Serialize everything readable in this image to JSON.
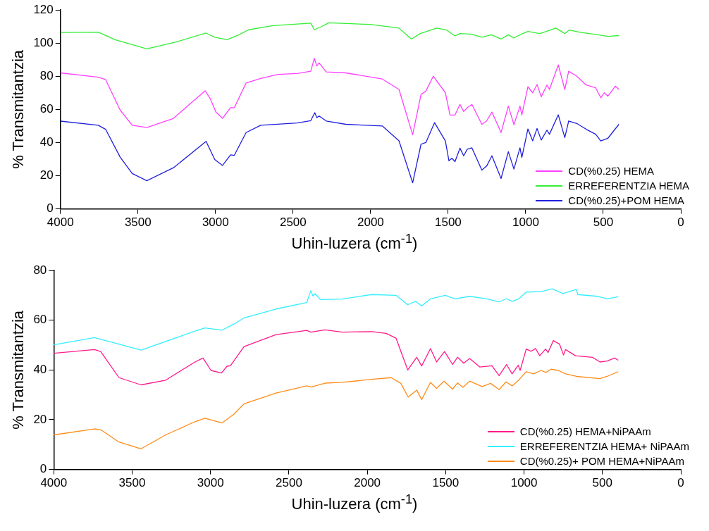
{
  "chart_data": [
    {
      "type": "line",
      "xlabel": "Uhin-luzera (cm$^{-1}$)",
      "ylabel": "% Transmitantzia",
      "xlim": [
        4000,
        0
      ],
      "xticks": [
        4000,
        3500,
        3000,
        2500,
        2000,
        1500,
        1000,
        500,
        0
      ],
      "ylim": [
        0,
        120
      ],
      "yticks": [
        0,
        20,
        40,
        60,
        80,
        100,
        120
      ],
      "grid": false,
      "legend": "bottom right",
      "marker": "none",
      "line_style": "solid",
      "series": [
        {
          "name": "CD(%0.25) HEMA",
          "color": "#ff40ff",
          "x": [
            4000,
            3756,
            3709,
            3615,
            3537,
            3443,
            3271,
            3067,
            3036,
            2997,
            2955,
            2903,
            2879,
            2803,
            2709,
            2598,
            2474,
            2386,
            2363,
            2347,
            2332,
            2286,
            2160,
            1925,
            1817,
            1729,
            1675,
            1644,
            1596,
            1518,
            1488,
            1456,
            1424,
            1400,
            1377,
            1347,
            1283,
            1252,
            1218,
            1159,
            1112,
            1076,
            1037,
            1025,
            986,
            955,
            927,
            900,
            863,
            847,
            790,
            748,
            723,
            671,
            610,
            549,
            516,
            494,
            470,
            422,
            399
          ],
          "values": [
            82,
            79.4,
            78,
            59.6,
            50.4,
            49,
            54.6,
            71.2,
            66.8,
            58.3,
            54.6,
            61,
            61,
            75.9,
            78.7,
            81.1,
            81.6,
            83,
            90.8,
            86.2,
            88,
            82.6,
            82,
            78.3,
            72,
            44.7,
            69,
            71,
            80,
            70,
            56.6,
            56.6,
            63,
            58.7,
            61,
            63,
            51,
            53,
            58.4,
            46,
            62,
            50.8,
            62,
            56.6,
            73.6,
            70,
            75,
            67.6,
            74.7,
            72,
            86.8,
            72,
            83,
            80,
            74.7,
            73,
            67,
            70,
            68,
            74,
            72
          ]
        },
        {
          "name": "ERREFERENTZIA HEMA",
          "color": "#33ee33",
          "x": [
            4000,
            3756,
            3648,
            3443,
            3255,
            3061,
            3005,
            2926,
            2849,
            2786,
            2629,
            2386,
            2363,
            2320,
            2269,
            2004,
            1817,
            1737,
            1680,
            1573,
            1510,
            1456,
            1424,
            1347,
            1283,
            1221,
            1159,
            1112,
            1076,
            1037,
            986,
            908,
            877,
            806,
            748,
            720,
            643,
            533,
            470,
            399
          ],
          "values": [
            106.4,
            106.6,
            102,
            96.5,
            100.6,
            106,
            103.5,
            102,
            105,
            108,
            110.5,
            112,
            108,
            109.8,
            112.2,
            111.2,
            109,
            102.4,
            105.7,
            109,
            107.8,
            104.3,
            105.7,
            105.3,
            103.5,
            105,
            102.4,
            105,
            103,
            105,
            107,
            105.7,
            106.7,
            109,
            105.7,
            107.8,
            106.4,
            105,
            104,
            104.5
          ]
        },
        {
          "name": "CD(%0.25)+POM HEMA",
          "color": "#1f1fdf",
          "x": [
            4000,
            3756,
            3709,
            3615,
            3537,
            3443,
            3271,
            3061,
            3005,
            2955,
            2903,
            2879,
            2803,
            2709,
            2474,
            2386,
            2360,
            2347,
            2332,
            2286,
            2160,
            1925,
            1817,
            1729,
            1675,
            1644,
            1588,
            1518,
            1495,
            1476,
            1456,
            1424,
            1400,
            1377,
            1347,
            1283,
            1252,
            1218,
            1159,
            1112,
            1076,
            1037,
            1025,
            986,
            955,
            927,
            900,
            863,
            847,
            790,
            748,
            723,
            671,
            610,
            549,
            516,
            470,
            399
          ],
          "values": [
            52.9,
            50.4,
            48,
            31.2,
            21.3,
            17,
            24.8,
            40.7,
            29.8,
            26.2,
            32.6,
            32.3,
            46,
            50.4,
            51.8,
            53.2,
            58,
            55,
            56,
            53,
            51,
            50,
            41,
            15.7,
            39,
            40,
            52,
            41,
            29,
            30.5,
            28.5,
            36.6,
            32,
            36,
            36.8,
            23.4,
            25.8,
            32,
            18.3,
            34.5,
            24,
            36.8,
            31,
            48.2,
            41,
            48.5,
            41.5,
            47.5,
            45,
            56.7,
            43,
            53,
            51.5,
            48,
            45,
            41,
            42.6,
            51
          ]
        }
      ]
    },
    {
      "type": "line",
      "xlabel": "Uhin-luzera (cm$^{-1}$)",
      "ylabel": "% Transmitantzia",
      "xlim": [
        4000,
        0
      ],
      "xticks": [
        4000,
        3500,
        3000,
        2500,
        2000,
        1500,
        1000,
        500,
        0
      ],
      "ylim": [
        0,
        80
      ],
      "yticks": [
        0,
        20,
        40,
        60,
        80
      ],
      "grid": false,
      "legend": "bottom right",
      "marker": "none",
      "line_style": "solid",
      "series": [
        {
          "name": "CD(%0.25) HEMA+NiPAAm",
          "color": "#ff1a8c",
          "x": [
            4000,
            3741,
            3701,
            3584,
            3443,
            3286,
            3099,
            3048,
            2997,
            2930,
            2895,
            2873,
            2786,
            2582,
            2386,
            2360,
            2269,
            2160,
            1972,
            1880,
            1817,
            1742,
            1685,
            1653,
            1597,
            1558,
            1507,
            1456,
            1424,
            1385,
            1347,
            1283,
            1205,
            1159,
            1112,
            1076,
            1037,
            1025,
            986,
            955,
            927,
            900,
            863,
            847,
            813,
            774,
            748,
            735,
            672,
            564,
            516,
            470,
            422,
            399
          ],
          "values": [
            46.7,
            48.2,
            47.4,
            36.9,
            34,
            35.9,
            43.2,
            44.8,
            39.8,
            38.8,
            41.5,
            41.7,
            49.4,
            54.2,
            55.9,
            55.2,
            56.1,
            55.2,
            55.4,
            54.7,
            52.8,
            40,
            45.1,
            41.6,
            48.6,
            43.2,
            47.4,
            42.2,
            45.1,
            42.7,
            44.6,
            41.2,
            41.7,
            37.7,
            42.2,
            38.4,
            41.9,
            39.8,
            48.4,
            47.5,
            48.6,
            45.7,
            48.4,
            47,
            51.8,
            50.4,
            46,
            48.2,
            45.7,
            45.1,
            43.2,
            43.6,
            44.8,
            43.9
          ]
        },
        {
          "name": "ERREFERENTZIA HEMA+ NiPAAm",
          "color": "#33eeff",
          "x": [
            4000,
            3741,
            3443,
            3099,
            3036,
            2926,
            2849,
            2786,
            2582,
            2386,
            2360,
            2347,
            2332,
            2300,
            2160,
            1972,
            1817,
            1742,
            1692,
            1653,
            1597,
            1503,
            1440,
            1347,
            1237,
            1159,
            1112,
            1076,
            1033,
            986,
            892,
            821,
            751,
            667,
            657,
            533,
            470,
            399
          ],
          "values": [
            50.1,
            53,
            48,
            55.6,
            56.9,
            56,
            58.5,
            60.9,
            64.5,
            67.1,
            71.9,
            69.7,
            70.6,
            68.3,
            68.5,
            70.3,
            70,
            66.2,
            67.6,
            65.7,
            68.6,
            70,
            68.6,
            69.6,
            68.6,
            67.4,
            68.6,
            67.6,
            68.6,
            71.3,
            71.5,
            72.6,
            70.7,
            72.4,
            70.3,
            69.6,
            68.6,
            69.4
          ]
        },
        {
          "name": "CD(%0.25)+ POM HEMA+NiPAAm",
          "color": "#ff8c1a",
          "x": [
            4000,
            3741,
            3701,
            3584,
            3443,
            3286,
            3099,
            3036,
            2926,
            2849,
            2786,
            2582,
            2386,
            2360,
            2269,
            2160,
            1972,
            1848,
            1786,
            1739,
            1685,
            1653,
            1597,
            1558,
            1511,
            1456,
            1424,
            1390,
            1347,
            1268,
            1213,
            1159,
            1115,
            1076,
            1033,
            986,
            939,
            892,
            861,
            827,
            782,
            735,
            665,
            516,
            470,
            399
          ],
          "values": [
            13.9,
            16.3,
            16,
            11,
            8.3,
            13.9,
            19.2,
            20.6,
            18.7,
            22.3,
            26.4,
            30.7,
            33.6,
            33.1,
            34.7,
            35,
            36.2,
            36.9,
            34.6,
            29.1,
            31.9,
            28.1,
            35,
            32.6,
            35.5,
            32.3,
            34.8,
            33,
            35.5,
            33.3,
            34.6,
            32.1,
            35.2,
            33.6,
            36,
            39.3,
            38.4,
            39.8,
            39,
            40.3,
            39.8,
            38.4,
            37.4,
            36.5,
            37.4,
            39.3
          ]
        }
      ]
    }
  ]
}
